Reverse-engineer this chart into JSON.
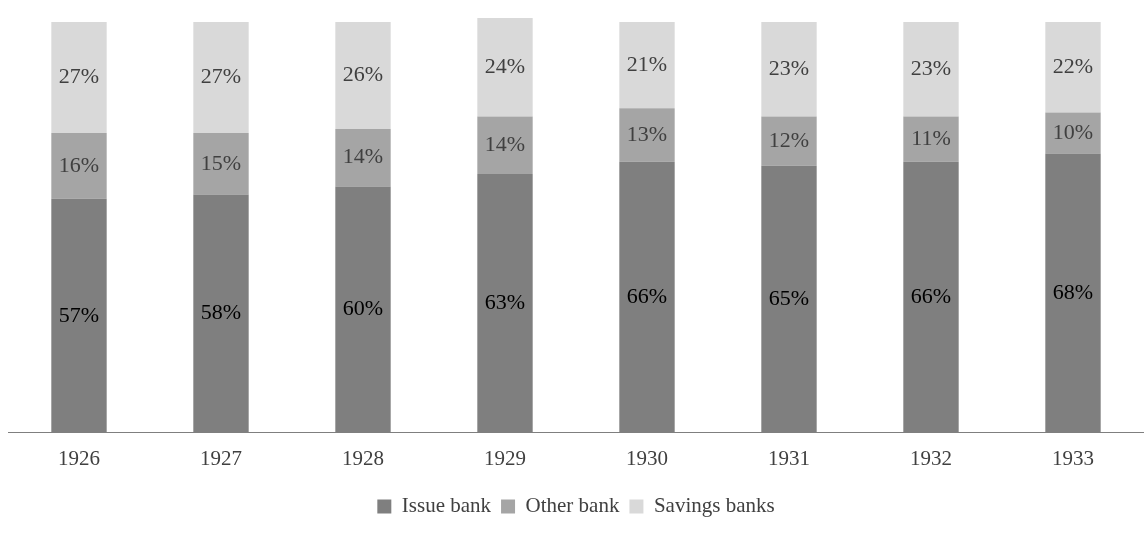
{
  "chart_data": {
    "type": "bar",
    "stacked": true,
    "legend": "bottom",
    "grid": false,
    "categories": [
      "1926",
      "1927",
      "1928",
      "1929",
      "1930",
      "1931",
      "1932",
      "1933"
    ],
    "series": [
      {
        "name": "Issue bank",
        "color": "#7f7f7f",
        "values": [
          57,
          58,
          60,
          63,
          66,
          65,
          66,
          68
        ],
        "value_labels": [
          "57%",
          "58%",
          "60%",
          "63%",
          "66%",
          "65%",
          "66%",
          "68%"
        ]
      },
      {
        "name": "Other bank",
        "color": "#a5a5a5",
        "values": [
          16,
          15,
          14,
          14,
          13,
          12,
          11,
          10
        ],
        "value_labels": [
          "16%",
          "15%",
          "14%",
          "14%",
          "13%",
          "12%",
          "11%",
          "10%"
        ]
      },
      {
        "name": "Savings banks",
        "color": "#d9d9d9",
        "values": [
          27,
          27,
          26,
          24,
          21,
          23,
          23,
          22
        ],
        "value_labels": [
          "27%",
          "27%",
          "26%",
          "24%",
          "21%",
          "23%",
          "23%",
          "22%"
        ]
      }
    ]
  }
}
